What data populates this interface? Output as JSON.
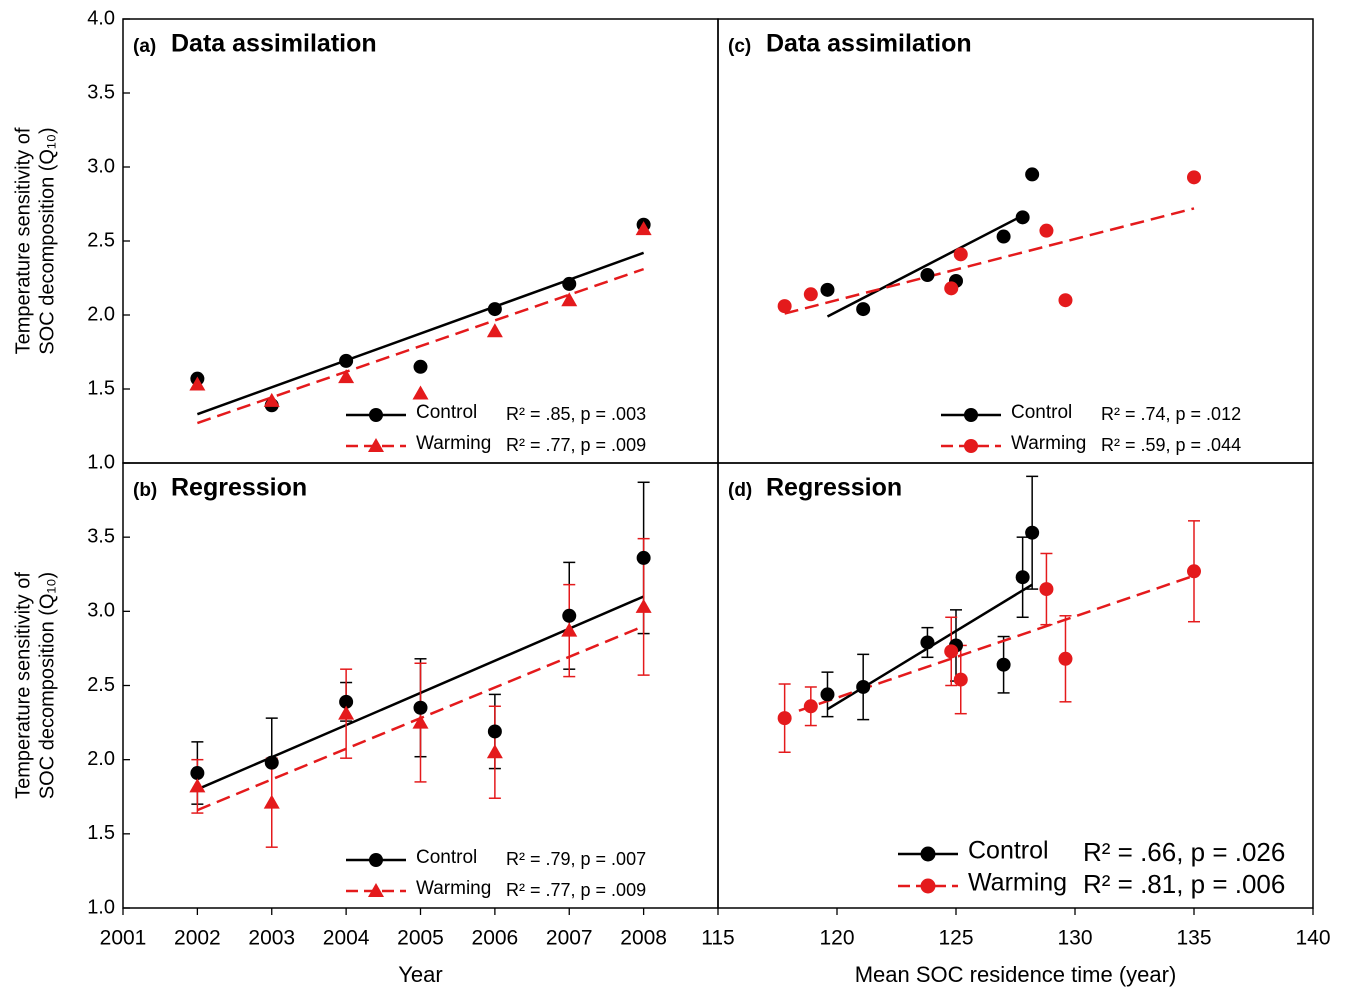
{
  "chart_data": [
    {
      "type": "scatter",
      "panel_label": "(a)",
      "title": "Data assimilation",
      "ylabel": [
        "Temperature sensitivity of",
        "SOC decomposition (Q₁₀)"
      ],
      "xlim": [
        2001,
        2009
      ],
      "ylim": [
        1,
        4
      ],
      "yticks": [
        {
          "value": 1,
          "label": "1.0"
        },
        1.5,
        {
          "value": 2,
          "label": "2.0"
        },
        2.5,
        {
          "value": 3,
          "label": "3.0"
        },
        3.5,
        {
          "value": 4,
          "label": "4.0"
        }
      ],
      "x": [
        2002,
        2003,
        2004,
        2005,
        2006,
        2007,
        2008
      ],
      "legend": "lower right",
      "series": [
        {
          "name": "Control",
          "stat": "R² = .85, p = .003",
          "color": "#000000",
          "marker": "circle",
          "dashed": false,
          "values": [
            1.57,
            1.39,
            1.69,
            1.65,
            2.04,
            2.21,
            2.61
          ],
          "fit_x": [
            2002,
            2008
          ],
          "fit_y": [
            1.33,
            2.42
          ]
        },
        {
          "name": "Warming",
          "stat": "R² = .77, p = .009",
          "color": "#e41a1c",
          "marker": "triangle",
          "dashed": true,
          "values": [
            1.53,
            1.42,
            1.58,
            1.47,
            1.89,
            2.1,
            2.58
          ],
          "fit_x": [
            2002,
            2008
          ],
          "fit_y": [
            1.27,
            2.31
          ]
        }
      ]
    },
    {
      "type": "scatter",
      "panel_label": "(b)",
      "title": "Regression",
      "ylabel": [
        "Temperature sensitivity of",
        "SOC decomposition (Q₁₀)"
      ],
      "xlabel": "Year",
      "xlim": [
        2001,
        2009
      ],
      "ylim": [
        1,
        4
      ],
      "xticks": [
        2001,
        2002,
        2003,
        2004,
        2005,
        2006,
        2007,
        2008
      ],
      "yticks": [
        {
          "value": 1,
          "label": "1.0"
        },
        1.5,
        {
          "value": 2,
          "label": "2.0"
        },
        2.5,
        {
          "value": 3,
          "label": "3.0"
        },
        3.5
      ],
      "x": [
        2002,
        2003,
        2004,
        2005,
        2006,
        2007,
        2008
      ],
      "legend": "lower right",
      "series": [
        {
          "name": "Control",
          "stat": "R² = .79, p = .007",
          "color": "#000000",
          "marker": "circle",
          "dashed": false,
          "values": [
            1.91,
            1.98,
            2.39,
            2.35,
            2.19,
            2.97,
            3.36
          ],
          "errors": [
            0.21,
            0.3,
            0.13,
            0.33,
            0.25,
            0.36,
            0.51
          ],
          "fit_x": [
            2002,
            2008
          ],
          "fit_y": [
            1.8,
            3.1
          ]
        },
        {
          "name": "Warming",
          "stat": "R² = .77, p = .009",
          "color": "#e41a1c",
          "marker": "triangle",
          "dashed": true,
          "values": [
            1.82,
            1.71,
            2.31,
            2.25,
            2.05,
            2.87,
            3.03
          ],
          "errors": [
            0.18,
            0.3,
            0.3,
            0.4,
            0.31,
            0.31,
            0.46
          ],
          "fit_x": [
            2002,
            2008
          ],
          "fit_y": [
            1.66,
            2.9
          ]
        }
      ]
    },
    {
      "type": "scatter",
      "panel_label": "(c)",
      "title": "Data assimilation",
      "xlim": [
        115,
        140
      ],
      "ylim": [
        1,
        4
      ],
      "legend": "lower right",
      "series": [
        {
          "name": "Control",
          "stat": "R² = .74, p = .012",
          "color": "#000000",
          "marker": "circle",
          "dashed": false,
          "x": [
            119.6,
            121.1,
            123.8,
            125.0,
            127.0,
            127.8,
            128.2
          ],
          "values": [
            2.17,
            2.04,
            2.27,
            2.23,
            2.53,
            2.66,
            2.95
          ],
          "fit_x": [
            119.6,
            127.9
          ],
          "fit_y": [
            1.99,
            2.68
          ]
        },
        {
          "name": "Warming",
          "stat": "R² = .59, p = .044",
          "color": "#e41a1c",
          "marker": "circle",
          "dashed": true,
          "x": [
            117.8,
            118.9,
            124.8,
            125.2,
            128.8,
            129.6,
            135.0
          ],
          "values": [
            2.06,
            2.14,
            2.18,
            2.41,
            2.57,
            2.1,
            2.93
          ],
          "fit_x": [
            117.8,
            135.0
          ],
          "fit_y": [
            2.01,
            2.72
          ]
        }
      ]
    },
    {
      "type": "scatter",
      "panel_label": "(d)",
      "title": "Regression",
      "xlabel": "Mean SOC residence time (year)",
      "xlim": [
        115,
        140
      ],
      "ylim": [
        1,
        4
      ],
      "xticks": [
        115,
        120,
        125,
        130,
        135,
        140
      ],
      "legend": "lower right",
      "series": [
        {
          "name": "Control",
          "stat": "R² = .66, p = .026",
          "color": "#000000",
          "marker": "circle",
          "dashed": false,
          "x": [
            119.6,
            121.1,
            123.8,
            125.0,
            127.0,
            127.8,
            128.2
          ],
          "values": [
            2.44,
            2.49,
            2.79,
            2.77,
            2.64,
            3.23,
            3.53
          ],
          "errors": [
            0.15,
            0.22,
            0.1,
            0.24,
            0.19,
            0.27,
            0.38
          ],
          "fit_x": [
            119.6,
            128.2
          ],
          "fit_y": [
            2.34,
            3.18
          ]
        },
        {
          "name": "Warming",
          "stat": "R² = .81, p = .006",
          "color": "#e41a1c",
          "marker": "circle",
          "dashed": true,
          "x": [
            117.8,
            118.9,
            124.8,
            125.2,
            128.8,
            129.6,
            135.0
          ],
          "values": [
            2.28,
            2.36,
            2.73,
            2.54,
            3.15,
            2.68,
            3.27
          ],
          "errors": [
            0.23,
            0.13,
            0.23,
            0.23,
            0.24,
            0.29,
            0.34
          ],
          "fit_x": [
            118.4,
            135.0
          ],
          "fit_y": [
            2.33,
            3.24
          ]
        }
      ]
    }
  ]
}
